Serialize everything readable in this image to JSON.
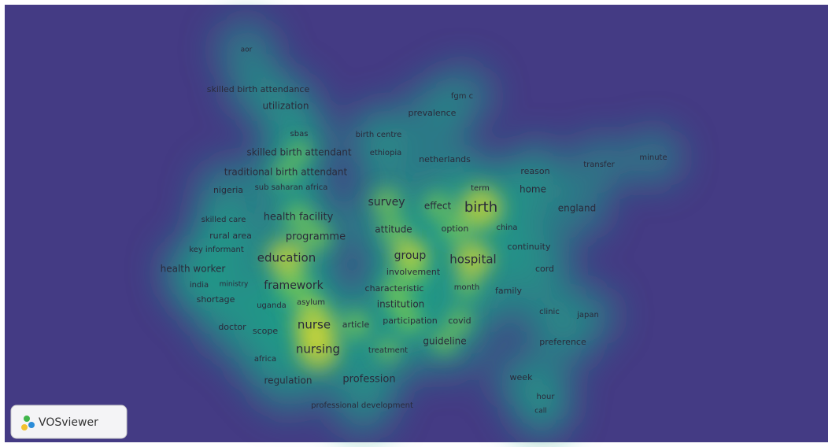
{
  "terms": [
    "aor",
    "skilled birth attendance",
    "utilization",
    "fgm c",
    "prevalence",
    "sbas",
    "birth centre",
    "skilled birth attendant",
    "ethiopia",
    "netherlands",
    "minute",
    "transfer",
    "reason",
    "traditional birth attendant",
    "term",
    "home",
    "nigeria",
    "sub saharan africa",
    "survey",
    "effect",
    "birth",
    "england",
    "skilled care",
    "health facility",
    "china",
    "attitude",
    "option",
    "rural area",
    "programme",
    "key informant",
    "continuity",
    "group",
    "education",
    "hospital",
    "health worker",
    "involvement",
    "cord",
    "india",
    "ministry",
    "framework",
    "characteristic",
    "month",
    "family",
    "shortage",
    "uganda",
    "asylum",
    "institution",
    "clinic",
    "japan",
    "doctor",
    "scope",
    "nurse",
    "article",
    "participation",
    "covid",
    "guideline",
    "preference",
    "nursing",
    "treatment",
    "africa",
    "week",
    "regulation",
    "profession",
    "hour",
    "professional development",
    "call"
  ],
  "badge": "VOSviewer"
}
